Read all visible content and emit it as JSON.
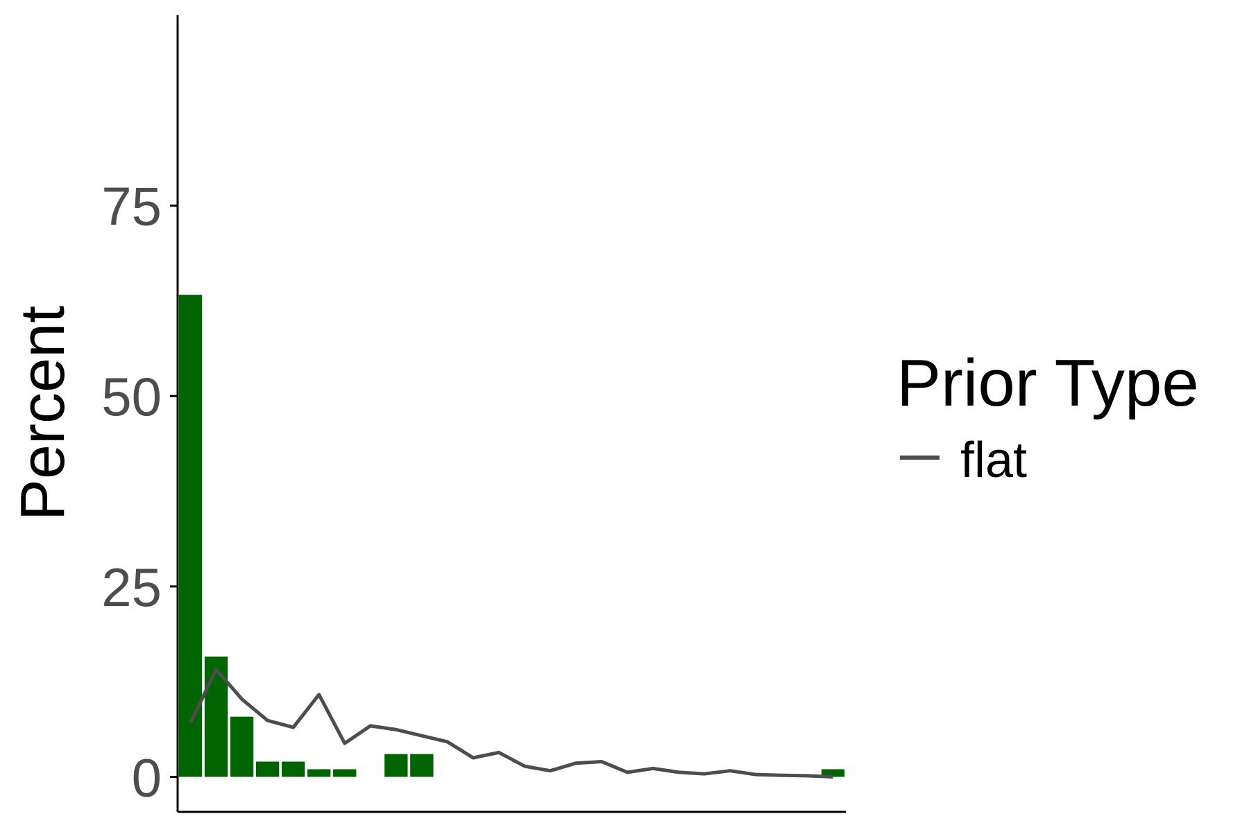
{
  "chart_data": {
    "type": "bar",
    "ylabel": "Percent",
    "xlabel": "",
    "ylim": [
      -4.6,
      100
    ],
    "xlim": [
      0.5,
      26.5
    ],
    "yticks": [
      0,
      25,
      50,
      75
    ],
    "y_tick_labels": [
      "0",
      "25",
      "50",
      "75"
    ],
    "grid": false,
    "bars": {
      "x": [
        1,
        2,
        3,
        4,
        5,
        6,
        7,
        8,
        9,
        10,
        11,
        12,
        13,
        14,
        15,
        16,
        17,
        18,
        19,
        20,
        21,
        22,
        23,
        24,
        25,
        26
      ],
      "values": [
        63.3,
        15.8,
        7.9,
        2.0,
        2.0,
        1.0,
        1.0,
        0,
        3.0,
        3.0,
        0,
        0,
        0,
        0,
        0,
        0,
        0,
        0,
        0,
        0,
        0,
        0,
        0,
        0,
        0,
        1.0
      ]
    },
    "series": [
      {
        "name": "flat",
        "type": "line",
        "x": [
          1,
          2,
          3,
          4,
          5,
          6,
          7,
          8,
          9,
          10,
          11,
          12,
          13,
          14,
          15,
          16,
          17,
          18,
          19,
          20,
          21,
          22,
          23,
          24,
          25,
          26
        ],
        "values": [
          7.1,
          14.1,
          10.2,
          7.4,
          6.5,
          10.8,
          4.4,
          6.7,
          6.2,
          5.4,
          4.6,
          2.5,
          3.2,
          1.4,
          0.8,
          1.8,
          2.0,
          0.6,
          1.1,
          0.6,
          0.4,
          0.8,
          0.3,
          0.2,
          0.15,
          0.0
        ]
      }
    ],
    "legend": {
      "title": "Prior Type",
      "placement": "right",
      "entries": [
        "flat"
      ]
    },
    "colors": {
      "bar": "#006400",
      "line": "#4d4d4d",
      "axis": "#000000",
      "tick_label": "#4d4d4d"
    }
  }
}
